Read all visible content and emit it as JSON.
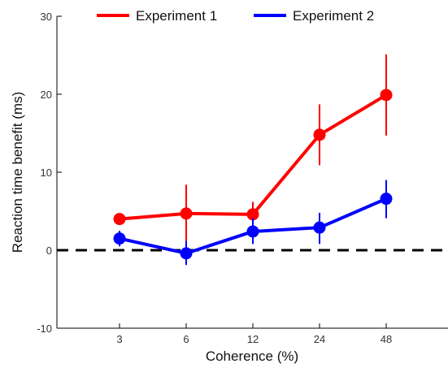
{
  "chart_data": {
    "type": "line",
    "xlabel": "Coherence (%)",
    "ylabel": "Reaction time benefit (ms)",
    "categories": [
      "3",
      "6",
      "12",
      "24",
      "48"
    ],
    "ylim": [
      -10,
      30
    ],
    "yticks": [
      -10,
      0,
      10,
      20,
      30
    ],
    "grid": false,
    "legend_position": "top",
    "reference_line": {
      "y": 0,
      "style": "dashed",
      "color": "#000000"
    },
    "series": [
      {
        "name": "Experiment 1",
        "color": "#ff0000",
        "values": [
          4.0,
          4.7,
          4.6,
          14.8,
          19.9
        ],
        "error_low": [
          3.3,
          1.0,
          3.0,
          10.9,
          14.7
        ],
        "error_high": [
          4.7,
          8.4,
          6.2,
          18.7,
          25.1
        ]
      },
      {
        "name": "Experiment 2",
        "color": "#0000ff",
        "values": [
          1.5,
          -0.4,
          2.4,
          2.9,
          6.6
        ],
        "error_low": [
          0.5,
          -1.9,
          0.8,
          0.8,
          4.1
        ],
        "error_high": [
          2.5,
          1.2,
          4.1,
          4.8,
          9.0
        ]
      }
    ]
  }
}
